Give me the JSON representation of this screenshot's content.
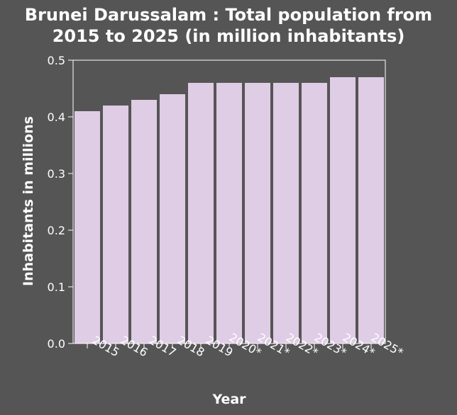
{
  "chart_data": {
    "type": "bar",
    "title_lines": [
      "Brunei Darussalam : Total population from",
      "2015 to 2025 (in million inhabitants)"
    ],
    "xlabel": "Year",
    "ylabel": "Inhabitants in millions",
    "categories": [
      "2015",
      "2016",
      "2017",
      "2018",
      "2019",
      "2020*",
      "2021*",
      "2022*",
      "2023*",
      "2024*",
      "2025*"
    ],
    "values": [
      0.41,
      0.42,
      0.43,
      0.44,
      0.46,
      0.46,
      0.46,
      0.46,
      0.46,
      0.47,
      0.47
    ],
    "ylim": [
      0,
      0.5
    ],
    "yticks": [
      "0.0",
      "0.1",
      "0.2",
      "0.3",
      "0.4",
      "0.5"
    ],
    "grid": false,
    "colors": {
      "background": "#555555",
      "bar": "#dfcce5",
      "axis": "#ffffff",
      "text": "#ffffff"
    }
  }
}
